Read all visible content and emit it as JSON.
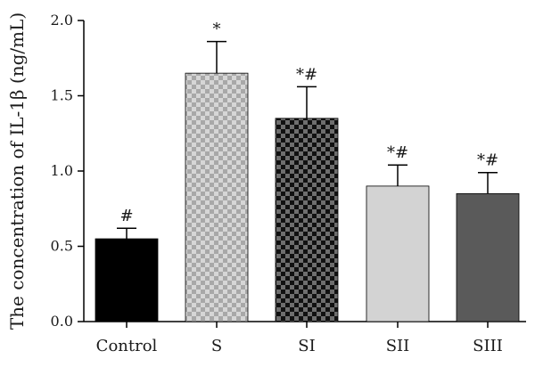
{
  "chart_data": {
    "type": "bar",
    "ylabel": "The concentration of IL-1β (ng/mL)",
    "ylim": [
      0,
      2.0
    ],
    "yticks": [
      0.0,
      0.5,
      1.0,
      1.5,
      2.0
    ],
    "ytick_labels": [
      "0.0",
      "0.5",
      "1.0",
      "1.5",
      "2.0"
    ],
    "categories": [
      "Control",
      "S",
      "SI",
      "SII",
      "SIII"
    ],
    "values": [
      0.55,
      1.65,
      1.35,
      0.9,
      0.85
    ],
    "errors": [
      0.07,
      0.21,
      0.21,
      0.14,
      0.14
    ],
    "significance": [
      "#",
      "*",
      "*#",
      "*#",
      "*#"
    ],
    "fills": [
      {
        "kind": "solid",
        "color": "#000000"
      },
      {
        "kind": "checker",
        "color1": "#a8a8a8",
        "color2": "#d6d6d6"
      },
      {
        "kind": "checker",
        "color1": "#111111",
        "color2": "#6e6e6e"
      },
      {
        "kind": "solid",
        "color": "#d3d3d3"
      },
      {
        "kind": "solid",
        "color": "#5a5a5a"
      }
    ],
    "grid": false,
    "legend": "none"
  }
}
